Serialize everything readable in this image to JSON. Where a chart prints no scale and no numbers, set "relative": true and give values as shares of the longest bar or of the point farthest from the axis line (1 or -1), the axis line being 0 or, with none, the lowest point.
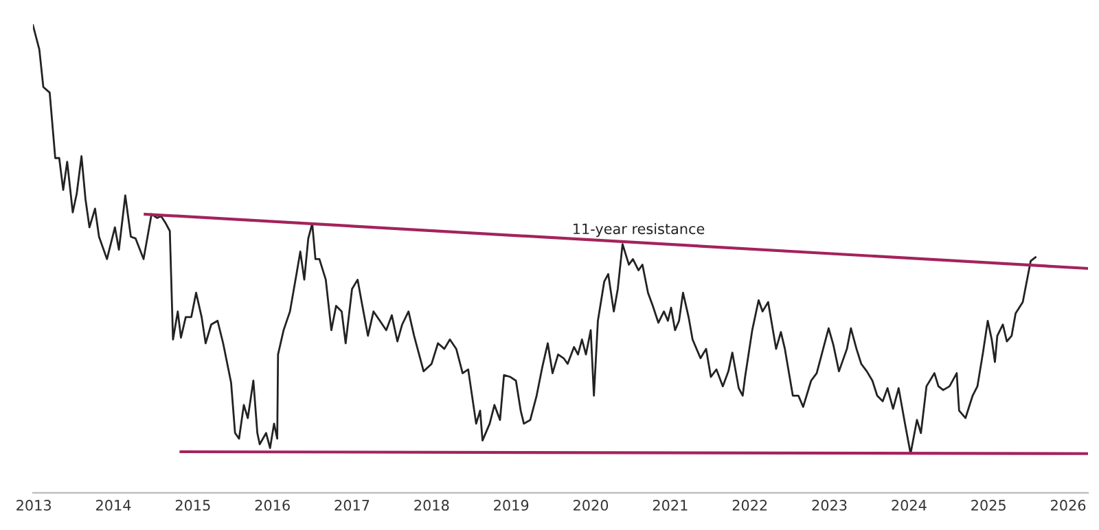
{
  "chart_data": {
    "type": "line",
    "relative": true,
    "grid": false,
    "legend": false,
    "marker": "none",
    "line_style": "solid",
    "xlim": [
      2012.99,
      2026.25
    ],
    "xticks": [
      2013,
      2014,
      2015,
      2016,
      2017,
      2018,
      2019,
      2020,
      2021,
      2022,
      2023,
      2024,
      2025,
      2026
    ],
    "annotations": [
      {
        "text": "11-year resistance",
        "x": 2020.6,
        "y": 0.535
      }
    ],
    "series": [
      {
        "color": "#222222",
        "x": [
          2012.99,
          2013.07,
          2013.12,
          2013.2,
          2013.27,
          2013.32,
          2013.37,
          2013.42,
          2013.49,
          2013.54,
          2013.6,
          2013.65,
          2013.7,
          2013.77,
          2013.82,
          2013.92,
          2014.02,
          2014.07,
          2014.15,
          2014.22,
          2014.28,
          2014.38,
          2014.48,
          2014.55,
          2014.6,
          2014.66,
          2014.71,
          2014.75,
          2014.81,
          2014.85,
          2014.91,
          2014.98,
          2015.04,
          2015.11,
          2015.16,
          2015.23,
          2015.31,
          2015.38,
          2015.48,
          2015.53,
          2015.58,
          2015.64,
          2015.69,
          2015.76,
          2015.81,
          2015.84,
          2015.92,
          2015.97,
          2016.02,
          2016.06,
          2016.07,
          2016.14,
          2016.22,
          2016.31,
          2016.35,
          2016.4,
          2016.45,
          2016.5,
          2016.54,
          2016.59,
          2016.67,
          2016.74,
          2016.8,
          2016.87,
          2016.92,
          2017.0,
          2017.07,
          2017.13,
          2017.2,
          2017.27,
          2017.35,
          2017.43,
          2017.5,
          2017.57,
          2017.63,
          2017.71,
          2017.78,
          2017.9,
          2018.0,
          2018.08,
          2018.16,
          2018.23,
          2018.31,
          2018.39,
          2018.46,
          2018.56,
          2018.61,
          2018.64,
          2018.73,
          2018.79,
          2018.86,
          2018.91,
          2018.99,
          2019.06,
          2019.12,
          2019.16,
          2019.24,
          2019.32,
          2019.39,
          2019.46,
          2019.52,
          2019.59,
          2019.66,
          2019.71,
          2019.79,
          2019.84,
          2019.89,
          2019.94,
          2020.0,
          2020.04,
          2020.09,
          2020.17,
          2020.22,
          2020.29,
          2020.34,
          2020.4,
          2020.48,
          2020.53,
          2020.6,
          2020.65,
          2020.72,
          2020.78,
          2020.85,
          2020.92,
          2020.97,
          2021.01,
          2021.06,
          2021.11,
          2021.16,
          2021.23,
          2021.28,
          2021.38,
          2021.45,
          2021.51,
          2021.58,
          2021.66,
          2021.73,
          2021.78,
          2021.86,
          2021.91,
          2021.94,
          2022.03,
          2022.11,
          2022.16,
          2022.23,
          2022.33,
          2022.39,
          2022.44,
          2022.54,
          2022.61,
          2022.67,
          2022.77,
          2022.84,
          2022.89,
          2022.99,
          2023.05,
          2023.12,
          2023.22,
          2023.27,
          2023.34,
          2023.4,
          2023.47,
          2023.54,
          2023.6,
          2023.67,
          2023.73,
          2023.8,
          2023.87,
          2023.95,
          2024.02,
          2024.1,
          2024.15,
          2024.22,
          2024.32,
          2024.37,
          2024.43,
          2024.51,
          2024.6,
          2024.63,
          2024.71,
          2024.8,
          2024.86,
          2024.93,
          2024.99,
          2025.04,
          2025.08,
          2025.11,
          2025.18,
          2025.23,
          2025.29,
          2025.34,
          2025.43,
          2025.53,
          2025.59
        ],
        "values": [
          1.0,
          0.948,
          0.868,
          0.856,
          0.716,
          0.716,
          0.648,
          0.708,
          0.6,
          0.64,
          0.72,
          0.628,
          0.568,
          0.608,
          0.548,
          0.5,
          0.568,
          0.52,
          0.636,
          0.548,
          0.544,
          0.5,
          0.596,
          0.588,
          0.592,
          0.576,
          0.56,
          0.328,
          0.388,
          0.332,
          0.376,
          0.376,
          0.428,
          0.376,
          0.32,
          0.36,
          0.368,
          0.32,
          0.236,
          0.128,
          0.116,
          0.188,
          0.16,
          0.24,
          0.128,
          0.104,
          0.128,
          0.096,
          0.148,
          0.116,
          0.296,
          0.348,
          0.388,
          0.476,
          0.516,
          0.456,
          0.544,
          0.576,
          0.5,
          0.5,
          0.456,
          0.348,
          0.4,
          0.388,
          0.32,
          0.436,
          0.456,
          0.4,
          0.336,
          0.388,
          0.368,
          0.348,
          0.38,
          0.324,
          0.36,
          0.388,
          0.336,
          0.26,
          0.276,
          0.32,
          0.308,
          0.328,
          0.308,
          0.256,
          0.264,
          0.148,
          0.176,
          0.112,
          0.148,
          0.188,
          0.156,
          0.252,
          0.248,
          0.24,
          0.176,
          0.148,
          0.156,
          0.208,
          0.268,
          0.32,
          0.256,
          0.296,
          0.288,
          0.276,
          0.312,
          0.296,
          0.328,
          0.296,
          0.348,
          0.208,
          0.368,
          0.452,
          0.468,
          0.388,
          0.436,
          0.532,
          0.488,
          0.5,
          0.476,
          0.488,
          0.428,
          0.4,
          0.364,
          0.388,
          0.368,
          0.396,
          0.348,
          0.368,
          0.428,
          0.376,
          0.328,
          0.288,
          0.308,
          0.248,
          0.264,
          0.228,
          0.26,
          0.3,
          0.224,
          0.208,
          0.248,
          0.348,
          0.412,
          0.388,
          0.408,
          0.308,
          0.344,
          0.308,
          0.208,
          0.208,
          0.184,
          0.24,
          0.256,
          0.288,
          0.352,
          0.316,
          0.26,
          0.308,
          0.352,
          0.308,
          0.276,
          0.26,
          0.24,
          0.208,
          0.196,
          0.224,
          0.18,
          0.224,
          0.148,
          0.084,
          0.156,
          0.128,
          0.228,
          0.256,
          0.228,
          0.22,
          0.228,
          0.256,
          0.176,
          0.16,
          0.208,
          0.228,
          0.3,
          0.368,
          0.328,
          0.28,
          0.336,
          0.36,
          0.324,
          0.336,
          0.384,
          0.408,
          0.496,
          0.504
        ]
      },
      {
        "color": "#a3235c",
        "x": [
          2014.4,
          2026.25
        ],
        "values": [
          0.596,
          0.48
        ]
      },
      {
        "color": "#a3235c",
        "x": [
          2014.85,
          2026.25
        ],
        "values": [
          0.088,
          0.084
        ]
      }
    ]
  }
}
